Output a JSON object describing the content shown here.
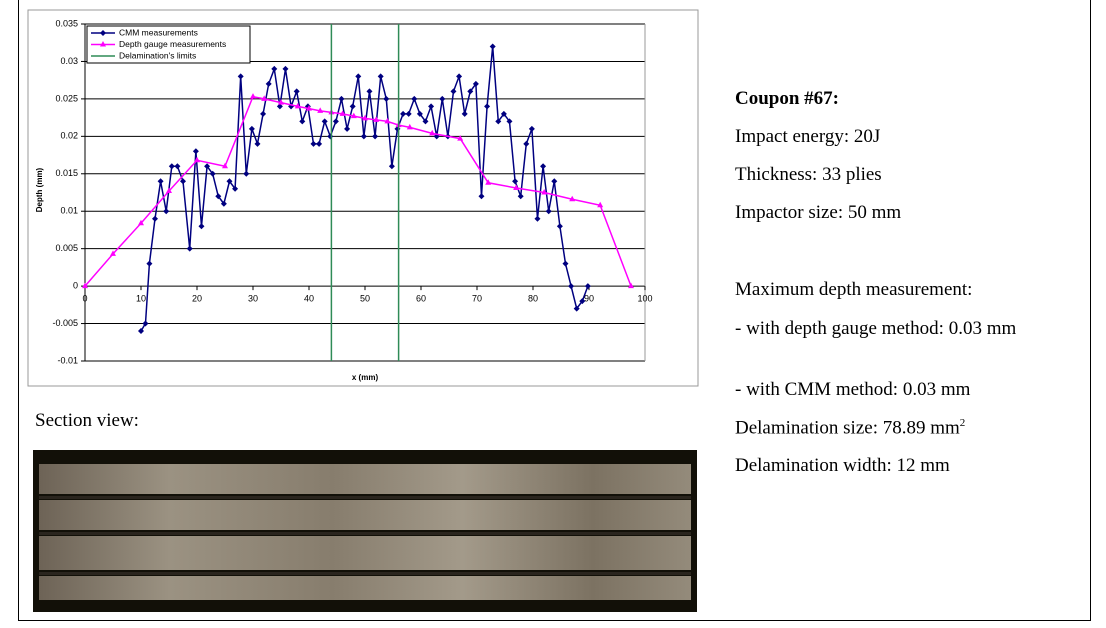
{
  "chart_data": {
    "type": "line",
    "xlabel": "x (mm)",
    "ylabel": "Depth (mm)",
    "xlim": [
      0,
      100
    ],
    "xticks": [
      0,
      10,
      20,
      30,
      40,
      50,
      60,
      70,
      80,
      90,
      100
    ],
    "ylim": [
      -0.01,
      0.035
    ],
    "yticks": [
      -0.01,
      -0.005,
      0,
      0.005,
      0.01,
      0.015,
      0.02,
      0.025,
      0.03,
      0.035
    ],
    "grid": true,
    "legend": "upper left",
    "series": [
      {
        "name": "CMM measurements",
        "color": "#000080",
        "marker": "diamond",
        "x": [
          10,
          10.8,
          11.5,
          12.5,
          13.5,
          14.5,
          15.5,
          16.5,
          17.5,
          18.7,
          19.8,
          20.8,
          21.8,
          22.8,
          23.8,
          24.8,
          25.8,
          26.8,
          27.8,
          28.8,
          29.8,
          30.8,
          31.8,
          32.8,
          33.8,
          34.8,
          35.8,
          36.8,
          37.8,
          38.8,
          39.8,
          40.8,
          41.8,
          42.8,
          43.8,
          44.8,
          45.8,
          46.8,
          47.8,
          48.8,
          49.8,
          50.8,
          51.8,
          52.8,
          53.8,
          54.8,
          55.8,
          56.8,
          57.8,
          58.8,
          59.8,
          60.8,
          61.8,
          62.8,
          63.8,
          64.8,
          65.8,
          66.8,
          67.8,
          68.8,
          69.8,
          70.8,
          71.8,
          72.8,
          73.8,
          74.8,
          75.8,
          76.8,
          77.8,
          78.8,
          79.8,
          80.8,
          81.8,
          82.8,
          83.8,
          84.8,
          85.8,
          86.8,
          87.8,
          88.8,
          89.8
        ],
        "values": [
          -0.006,
          -0.005,
          0.003,
          0.009,
          0.014,
          0.01,
          0.016,
          0.016,
          0.014,
          0.005,
          0.018,
          0.008,
          0.016,
          0.015,
          0.012,
          0.011,
          0.014,
          0.013,
          0.028,
          0.015,
          0.021,
          0.019,
          0.023,
          0.027,
          0.029,
          0.024,
          0.029,
          0.024,
          0.026,
          0.022,
          0.024,
          0.019,
          0.019,
          0.022,
          0.02,
          0.022,
          0.025,
          0.021,
          0.024,
          0.028,
          0.02,
          0.026,
          0.02,
          0.028,
          0.025,
          0.016,
          0.021,
          0.023,
          0.023,
          0.025,
          0.023,
          0.022,
          0.024,
          0.02,
          0.025,
          0.02,
          0.026,
          0.028,
          0.023,
          0.026,
          0.027,
          0.012,
          0.024,
          0.032,
          0.022,
          0.023,
          0.022,
          0.014,
          0.012,
          0.019,
          0.021,
          0.009,
          0.016,
          0.01,
          0.014,
          0.008,
          0.003,
          0,
          -0.003,
          -0.002,
          0
        ]
      },
      {
        "name": "Depth gauge measurements",
        "color": "#ff00ff",
        "marker": "triangle",
        "x": [
          0,
          5,
          10,
          15,
          20,
          25,
          30,
          32,
          35,
          38,
          40,
          42,
          44,
          46,
          48,
          50,
          52,
          54,
          56,
          58,
          62,
          67,
          72,
          77,
          82,
          87,
          92,
          97.5
        ],
        "values": [
          0,
          0.0043,
          0.0084,
          0.0127,
          0.0168,
          0.016,
          0.0253,
          0.025,
          0.0245,
          0.024,
          0.0237,
          0.0234,
          0.0232,
          0.023,
          0.0227,
          0.0224,
          0.0222,
          0.022,
          0.0215,
          0.0212,
          0.0204,
          0.0197,
          0.0138,
          0.0131,
          0.0125,
          0.0116,
          0.0108,
          0
        ]
      },
      {
        "name": "Delamination's limits",
        "color": "#2e8b57",
        "marker": "vline",
        "x": [
          44,
          56
        ]
      }
    ]
  },
  "document": {
    "section_label": "Section view:",
    "coupon": "Coupon #67:",
    "impact": "Impact energy: 20J",
    "thickness": "Thickness: 33 plies",
    "impactor": "Impactor size:  50 mm",
    "max_heading": "Maximum depth measurement:",
    "gauge": "- with depth gauge method: 0.03 mm",
    "cmm": "- with CMM method: 0.03 mm",
    "delam_size": "Delamination size: 78.89 mm",
    "delam_size_sup": "2",
    "delam_width": "Delamination width: 12 mm"
  }
}
